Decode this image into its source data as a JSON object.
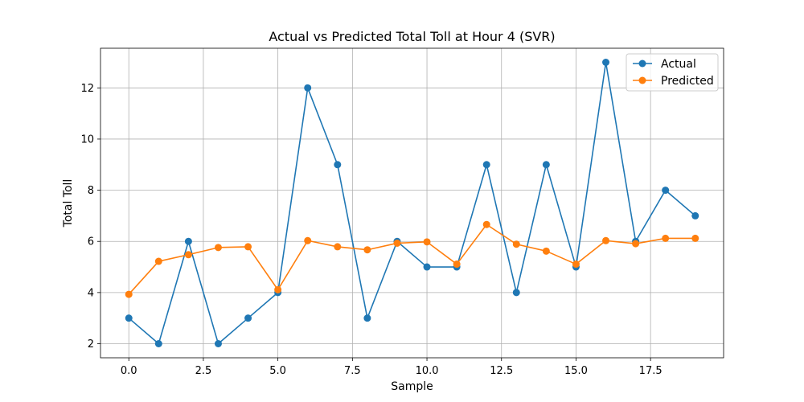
{
  "chart_data": {
    "type": "line",
    "title": "Actual vs Predicted Total Toll at Hour 4 (SVR)",
    "xlabel": "Sample",
    "ylabel": "Total Toll",
    "x": [
      0,
      1,
      2,
      3,
      4,
      5,
      6,
      7,
      8,
      9,
      10,
      11,
      12,
      13,
      14,
      15,
      16,
      17,
      18,
      19
    ],
    "xlim": [
      -0.95,
      19.95
    ],
    "ylim": [
      1.45,
      13.55
    ],
    "xticks": [
      0.0,
      2.5,
      5.0,
      7.5,
      10.0,
      12.5,
      15.0,
      17.5
    ],
    "xtick_labels": [
      "0.0",
      "2.5",
      "5.0",
      "7.5",
      "10.0",
      "12.5",
      "15.0",
      "17.5"
    ],
    "yticks": [
      2,
      4,
      6,
      8,
      10,
      12
    ],
    "ytick_labels": [
      "2",
      "4",
      "6",
      "8",
      "10",
      "12"
    ],
    "grid": true,
    "legend_position": "top-right",
    "series": [
      {
        "name": "Actual",
        "color": "#1f77b4",
        "marker": "circle",
        "values": [
          3,
          2,
          6,
          2,
          3,
          4,
          12,
          9,
          3,
          6,
          5,
          5,
          9,
          4,
          9,
          5,
          13,
          6,
          8,
          7
        ]
      },
      {
        "name": "Predicted",
        "color": "#ff7f0e",
        "marker": "circle",
        "values": [
          3.93,
          5.22,
          5.48,
          5.76,
          5.79,
          4.11,
          6.03,
          5.79,
          5.67,
          5.93,
          5.98,
          5.11,
          6.66,
          5.89,
          5.62,
          5.11,
          6.03,
          5.91,
          6.12,
          6.12
        ]
      }
    ]
  }
}
